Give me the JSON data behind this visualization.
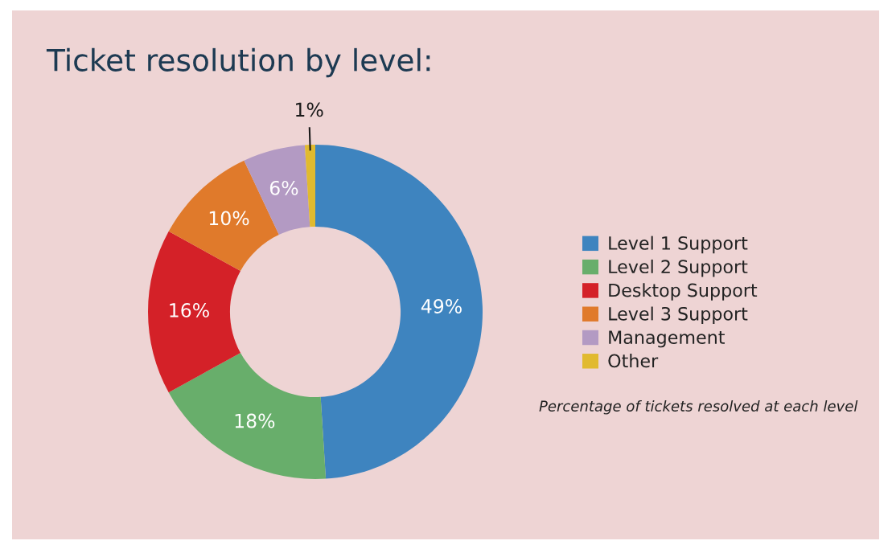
{
  "chart_data": {
    "type": "donut",
    "title": "Ticket resolution by level:",
    "categories": [
      "Level 1 Support",
      "Level 2 Support",
      "Desktop Support",
      "Level 3 Support",
      "Management",
      "Other"
    ],
    "values": [
      49,
      18,
      16,
      10,
      6,
      1
    ],
    "colors": [
      "#3e84bf",
      "#68ae6b",
      "#d42128",
      "#e07a2b",
      "#b39ac3",
      "#e1ba2f"
    ],
    "value_labels": [
      "49%",
      "18%",
      "16%",
      "10%",
      "6%",
      "1%"
    ],
    "legend": "right",
    "annotations": [
      "Percentage of tickets resolved at each level"
    ]
  }
}
